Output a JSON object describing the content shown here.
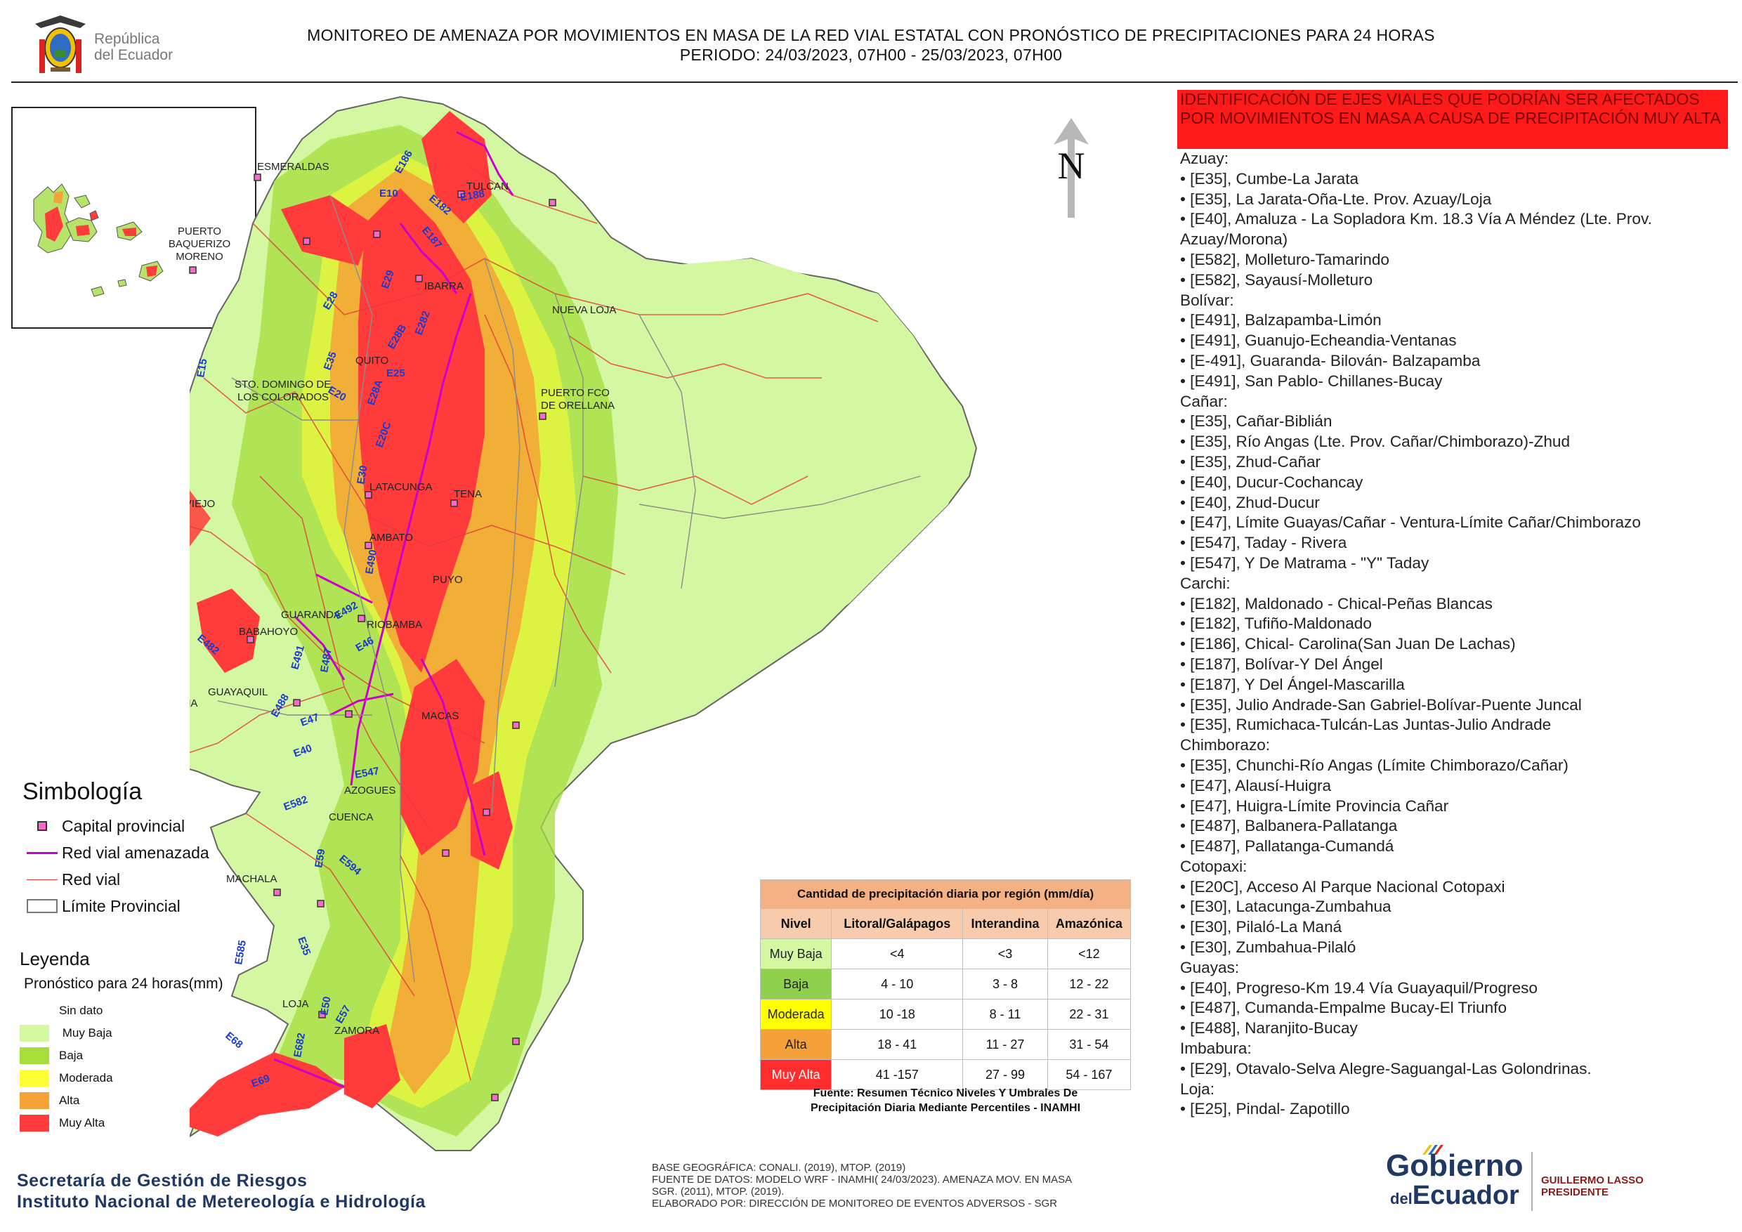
{
  "header": {
    "logo_text_line1": "República",
    "logo_text_line2": "del Ecuador",
    "title_line1": "MONITOREO DE AMENAZA POR MOVIMIENTOS EN MASA DE LA RED VIAL  ESTATAL  CON PRONÓSTICO  DE  PRECIPITACIONES PARA 24 HORAS",
    "title_line2": "PERIODO: 24/03/2023, 07H00 - 25/03/2023, 07H00"
  },
  "inset": {
    "label_line1": "PUERTO",
    "label_line2": "BAQUERIZO",
    "label_line3": "MORENO"
  },
  "map": {
    "north_label": "N",
    "cities": {
      "esmeraldas": "ESMERALDAS",
      "tulcan": "TULCAN",
      "ibarra": "IBARRA",
      "nueva_loja": "NUEVA LOJA",
      "quito": "QUITO",
      "sto_domingo_1": "STO. DOMINGO DE",
      "sto_domingo_2": "LOS COLORADOS",
      "puerto_orellana_1": "PUERTO FCO",
      "puerto_orellana_2": "DE ORELLANA",
      "portoviejo": "PORTOVIEJO",
      "latacunga": "LATACUNGA",
      "tena": "TENA",
      "ambato": "AMBATO",
      "puyo": "PUYO",
      "guaranda": "GUARANDA",
      "riobamba": "RIOBAMBA",
      "babahoyo": "BABAHOYO",
      "santa_elena": "SANTA ELENA",
      "guayaquil": "GUAYAQUIL",
      "macas": "MACAS",
      "azogues": "AZOGUES",
      "cuenca": "CUENCA",
      "machala": "MACHALA",
      "loja": "LOJA",
      "zamora": "ZAMORA"
    },
    "roads": [
      "E10",
      "E182",
      "E186",
      "E187",
      "E188",
      "E28",
      "E29",
      "E35",
      "E15",
      "E28B",
      "E282",
      "E25",
      "E20",
      "E28A",
      "E20C",
      "E30",
      "E490",
      "E492",
      "E491",
      "E482",
      "E487",
      "E46",
      "E488",
      "E47",
      "E40",
      "E547",
      "E582",
      "E59",
      "E594",
      "E35",
      "E585",
      "E50",
      "E68",
      "E69",
      "E682",
      "E57"
    ]
  },
  "identification": {
    "header": "IDENTIFICACIÓN DE EJES VIALES QUE PODRÍAN SER AFECTADOS POR MOVIMIENTOS EN MASA A CAUSA DE PRECIPITACIÓN MUY ALTA",
    "groups": [
      {
        "province": "Azuay:",
        "items": [
          "• [E35], Cumbe-La Jarata",
          "• [E35], La Jarata-Oña-Lte. Prov. Azuay/Loja",
          "• [E40], Amaluza - La Sopladora Km. 18.3 Vía A Méndez (Lte. Prov. Azuay/Morona)",
          "• [E582], Molleturo-Tamarindo",
          "• [E582], Sayausí-Molleturo"
        ]
      },
      {
        "province": "Bolívar:",
        "items": [
          "• [E491], Balzapamba-Limón",
          "• [E491], Guanujo-Echeandia-Ventanas",
          "• [E-491], Guaranda- Bilován- Balzapamba",
          "• [E491], San Pablo- Chillanes-Bucay"
        ]
      },
      {
        "province": "Cañar:",
        "items": [
          "• [E35], Cañar-Biblián",
          "• [E35], Río Angas (Lte. Prov. Cañar/Chimborazo)-Zhud",
          "• [E35], Zhud-Cañar",
          "• [E40], Ducur-Cochancay",
          "• [E40], Zhud-Ducur",
          "• [E47], Límite Guayas/Cañar - Ventura-Límite Cañar/Chimborazo",
          "• [E547], Taday - Rivera",
          "• [E547], Y De Matrama - \"Y\" Taday"
        ]
      },
      {
        "province": "Carchi:",
        "items": [
          "• [E182], Maldonado - Chical-Peñas Blancas",
          "• [E182], Tufiño-Maldonado",
          "• [E186], Chical- Carolina(San Juan De Lachas)",
          "• [E187], Bolívar-Y Del Ángel",
          "• [E187], Y Del Ángel-Mascarilla",
          "• [E35], Julio Andrade-San Gabriel-Bolívar-Puente Juncal",
          "• [E35], Rumichaca-Tulcán-Las Juntas-Julio Andrade"
        ]
      },
      {
        "province": "Chimborazo:",
        "items": [
          "• [E35], Chunchi-Río Angas (Límite Chimborazo/Cañar)",
          "• [E47], Alausí-Huigra",
          "• [E47], Huigra-Límite Provincia Cañar",
          "• [E487], Balbanera-Pallatanga",
          "• [E487], Pallatanga-Cumandá"
        ]
      },
      {
        "province": "Cotopaxi:",
        "items": [
          "• [E20C], Acceso Al Parque Nacional Cotopaxi",
          "• [E30], Latacunga-Zumbahua",
          "• [E30], Pilaló-La Maná",
          "• [E30], Zumbahua-Pilaló"
        ]
      },
      {
        "province": "Guayas:",
        "items": [
          "• [E40], Progreso-Km 19.4 Vía Guayaquil/Progreso",
          "• [E487], Cumanda-Empalme Bucay-El Triunfo",
          "• [E488], Naranjito-Bucay"
        ]
      },
      {
        "province": "Imbabura:",
        "items": [
          "• [E29], Otavalo-Selva Alegre-Saguangal-Las Golondrinas."
        ]
      },
      {
        "province": "Loja:",
        "items": [
          "• [E25], Pindal- Zapotillo"
        ]
      }
    ]
  },
  "simbologia": {
    "title": "Simbología",
    "capital": "Capital provincial",
    "threatened": "Red vial amenazada",
    "road": "Red vial",
    "limit": "Límite Provincial"
  },
  "leyenda": {
    "title": "Leyenda",
    "subtitle": "Pronóstico para 24 horas(mm)",
    "levels": [
      {
        "label": "Sin dato",
        "color": "#ffffff"
      },
      {
        "label": " Muy Baja",
        "color": "#d4f7a2"
      },
      {
        "label": "Baja",
        "color": "#a6de3a"
      },
      {
        "label": "Moderada",
        "color": "#ffff33"
      },
      {
        "label": "Alta",
        "color": "#f5a236"
      },
      {
        "label": "Muy Alta",
        "color": "#ff3b3b"
      }
    ]
  },
  "precip_table": {
    "caption": "Cantidad de precipitación diaria por región (mm/día)",
    "headers": [
      "Nivel",
      "Litoral/Galápagos",
      "Interandina",
      "Amazónica"
    ],
    "rows": [
      {
        "level": "Muy Baja",
        "color": "#d4f7a2",
        "text_color": "#222222",
        "values": [
          "<4",
          "<3",
          "<12"
        ]
      },
      {
        "level": "Baja",
        "color": "#8fd14f",
        "text_color": "#222222",
        "values": [
          "4 - 10",
          "3 - 8",
          "12 - 22"
        ]
      },
      {
        "level": "Moderada",
        "color": "#ffff00",
        "text_color": "#222222",
        "values": [
          "10 -18",
          "8 - 11",
          "22 - 31"
        ]
      },
      {
        "level": "Alta",
        "color": "#f4a13a",
        "text_color": "#222222",
        "values": [
          "18 - 41",
          "11 - 27",
          "31 - 54"
        ]
      },
      {
        "level": "Muy Alta",
        "color": "#ff2d2d",
        "text_color": "#ffffff",
        "values": [
          "41 -157",
          "27 - 99",
          "54 - 167"
        ]
      }
    ],
    "source_line1": "Fuente: Resumen Técnico Niveles Y Umbrales De",
    "source_line2": "Precipitación Diaria Mediante Percentiles - INAMHI"
  },
  "footer": {
    "org_line1": "Secretaría de Gestión de Riesgos",
    "org_line2": "Instituto Nacional de Metereología e Hidrología",
    "credit_line1": "BASE GEOGRÁFICA: CONALI. (2019), MTOP. (2019)",
    "credit_line2": "FUENTE DE DATOS: MODELO WRF - INAMHI( 24/03/2023).  AMENAZA MOV. EN MASA",
    "credit_line3": "SGR. (2011), MTOP. (2019).",
    "credit_line4": "ELABORADO POR: DIRECCIÓN DE MONITOREO DE EVENTOS ADVERSOS - SGR",
    "gov_line1": "Gobierno",
    "gov_line2_small": "del",
    "gov_line2": "Ecuador",
    "president_line1": "GUILLERMO LASSO",
    "president_line2": "PRESIDENTE"
  }
}
